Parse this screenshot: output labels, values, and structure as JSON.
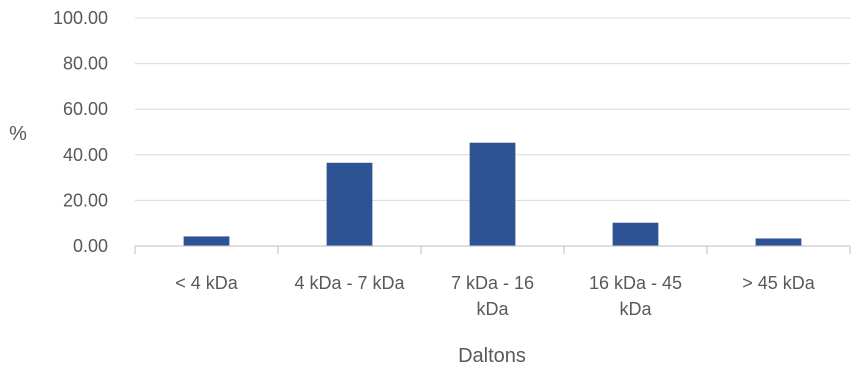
{
  "chart_data": {
    "type": "bar",
    "categories": [
      [
        "< 4 kDa"
      ],
      [
        "4 kDa - 7 kDa"
      ],
      [
        "7 kDa - 16",
        "kDa"
      ],
      [
        "16 kDa - 45",
        "kDa"
      ],
      [
        "> 45 kDa"
      ]
    ],
    "values": [
      4.2,
      36.5,
      45.3,
      10.2,
      3.3
    ],
    "xlabel": "Daltons",
    "ylabel": "%",
    "ylim": [
      0,
      100
    ],
    "yticks": [
      "0.00",
      "20.00",
      "40.00",
      "60.00",
      "80.00",
      "100.00"
    ],
    "grid": true,
    "legend": "none",
    "bar_color": "#2e5395"
  }
}
